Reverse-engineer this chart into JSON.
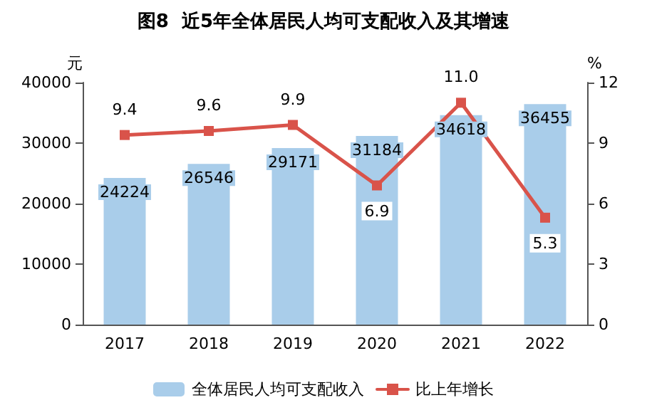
{
  "chart_data": {
    "type": "bar",
    "title": "图8  近5年全体居民人均可支配收入及其增速",
    "ylabel": "元",
    "y2label": "%",
    "categories": [
      "2017",
      "2018",
      "2019",
      "2020",
      "2021",
      "2022"
    ],
    "series": [
      {
        "name": "全体居民人均可支配收入",
        "type": "bar",
        "color": "#a9cdea",
        "values": [
          24224,
          26546,
          29171,
          31184,
          34618,
          36455
        ],
        "value_labels": [
          "24224",
          "26546",
          "29171",
          "31184",
          "34618",
          "36455"
        ]
      },
      {
        "name": "比上年增长",
        "type": "line",
        "axis": "y2",
        "color": "#d9534a",
        "values": [
          9.4,
          9.6,
          9.9,
          6.9,
          11.0,
          5.3
        ],
        "value_labels": [
          "9.4",
          "9.6",
          "9.9",
          "6.9",
          "11.0",
          "5.3"
        ]
      }
    ],
    "ylim": [
      0,
      40000
    ],
    "yticks": [
      0,
      10000,
      20000,
      30000,
      40000
    ],
    "y2lim": [
      0,
      12
    ],
    "y2ticks": [
      0,
      3,
      6,
      9,
      12
    ],
    "grid": false,
    "legend": "bottom",
    "marker": "square",
    "line_style": "solid"
  }
}
